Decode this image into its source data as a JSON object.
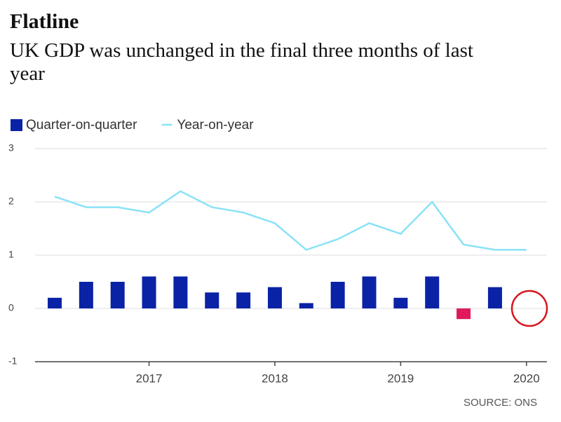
{
  "chart_data": {
    "type": "bar_line",
    "title": "Flatline",
    "subtitle": "UK GDP was unchanged in the final three months of last year",
    "source": "SOURCE: ONS",
    "categories": [
      null,
      null,
      null,
      "2017",
      null,
      null,
      null,
      "2018",
      null,
      null,
      null,
      "2019",
      null,
      null,
      null,
      "2020"
    ],
    "series": [
      {
        "name": "Quarter-on-quarter",
        "type": "bar",
        "color": "#0a22a6",
        "negative_color": "#e01a5a",
        "values": [
          0.2,
          0.5,
          0.5,
          0.6,
          0.6,
          0.3,
          0.3,
          0.4,
          0.1,
          0.5,
          0.6,
          0.2,
          0.6,
          -0.2,
          0.4,
          0.0
        ]
      },
      {
        "name": "Year-on-year",
        "type": "line",
        "color": "#8ae2f6",
        "values": [
          2.1,
          1.9,
          1.9,
          1.8,
          2.2,
          1.9,
          1.8,
          1.6,
          1.1,
          1.3,
          1.6,
          1.4,
          2.0,
          1.2,
          1.1,
          1.1
        ]
      }
    ],
    "ylim": [
      -1,
      3
    ],
    "yticks": [
      -1,
      0,
      1,
      2,
      3
    ],
    "grid": true
  }
}
